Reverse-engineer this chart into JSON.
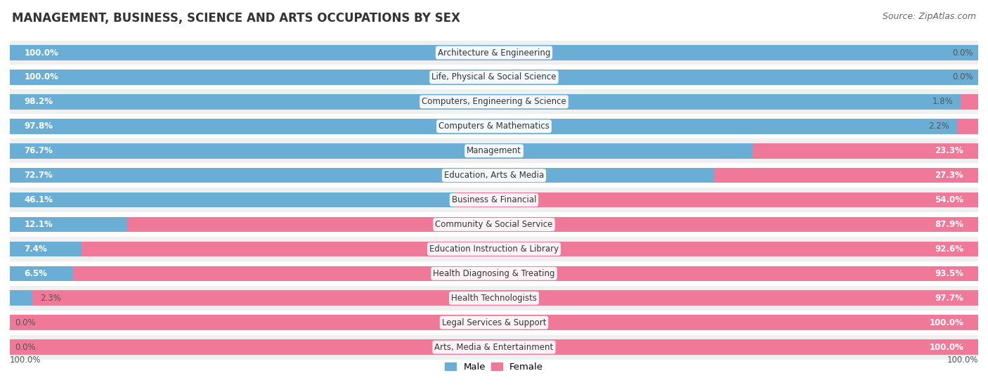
{
  "title": "MANAGEMENT, BUSINESS, SCIENCE AND ARTS OCCUPATIONS BY SEX",
  "source": "Source: ZipAtlas.com",
  "categories": [
    "Architecture & Engineering",
    "Life, Physical & Social Science",
    "Computers, Engineering & Science",
    "Computers & Mathematics",
    "Management",
    "Education, Arts & Media",
    "Business & Financial",
    "Community & Social Service",
    "Education Instruction & Library",
    "Health Diagnosing & Treating",
    "Health Technologists",
    "Legal Services & Support",
    "Arts, Media & Entertainment"
  ],
  "male": [
    100.0,
    100.0,
    98.2,
    97.8,
    76.7,
    72.7,
    46.1,
    12.1,
    7.4,
    6.5,
    2.3,
    0.0,
    0.0
  ],
  "female": [
    0.0,
    0.0,
    1.8,
    2.2,
    23.3,
    27.3,
    54.0,
    87.9,
    92.6,
    93.5,
    97.7,
    100.0,
    100.0
  ],
  "male_color": "#6aaed6",
  "female_color": "#f07898",
  "label_color_dark": "#555555",
  "background_color": "#ffffff",
  "row_bg_alt": "#f0f0f0",
  "bar_height": 0.62,
  "title_fontsize": 12,
  "source_fontsize": 9,
  "label_fontsize": 8.5,
  "category_fontsize": 8.5
}
